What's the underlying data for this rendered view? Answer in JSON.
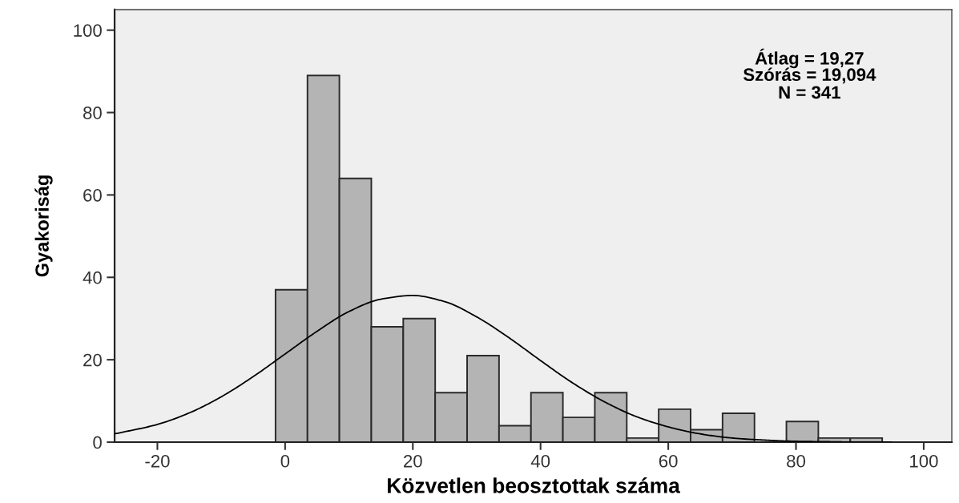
{
  "chart_data": {
    "type": "histogram",
    "xlabel": "Közvetlen beosztottak száma",
    "ylabel": "Gyakoriság",
    "annotations": [
      "Átlag = 19,27",
      "Szórás = 19,094",
      "N = 341"
    ],
    "bins": [
      -1.5,
      3.5,
      8.5,
      13.5,
      18.5,
      23.5,
      28.5,
      33.5,
      38.5,
      43.5,
      48.5,
      53.5,
      58.5,
      63.5,
      68.5,
      73.5,
      78.5,
      83.5,
      88.5,
      93.5
    ],
    "values": [
      37,
      89,
      64,
      28,
      30,
      12,
      21,
      4,
      12,
      6,
      12,
      1,
      8,
      3,
      7,
      0,
      5,
      1,
      1
    ],
    "color": "#b4b4b4",
    "series": [
      {
        "type": "line",
        "color": "#000000",
        "x": [
          -26.7,
          -20,
          -15,
          -10,
          -5,
          0,
          5,
          10,
          15,
          20,
          25,
          30,
          35,
          40,
          45,
          50,
          55,
          60,
          65,
          70,
          75,
          80,
          85,
          90,
          95
        ],
        "values": [
          2.0,
          4.3,
          7.1,
          11.0,
          15.9,
          21.4,
          26.9,
          31.7,
          34.7,
          35.6,
          34.1,
          30.4,
          25.4,
          19.8,
          14.4,
          9.8,
          6.2,
          3.7,
          2.0,
          1.0,
          0.5,
          0.2,
          0.1,
          0.0,
          0.0
        ]
      }
    ],
    "xlim": [
      -26.7,
      104.4
    ],
    "ylim": [
      0,
      105
    ],
    "xticks": [
      -20,
      0,
      20,
      40,
      60,
      80,
      100
    ],
    "yticks": [
      0,
      20,
      40,
      60,
      80,
      100
    ]
  }
}
